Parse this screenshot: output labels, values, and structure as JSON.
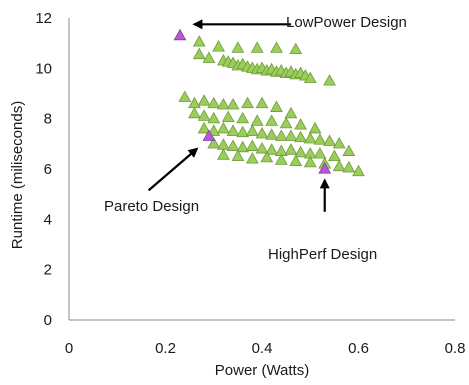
{
  "chart_data": {
    "type": "scatter",
    "xlabel": "Power (Watts)",
    "ylabel": "Runtime (miliseconds)",
    "xlim": [
      0,
      0.8
    ],
    "ylim": [
      0,
      12
    ],
    "x_ticks": [
      "0",
      "0.2",
      "0.4",
      "0.6",
      "0.8"
    ],
    "y_ticks": [
      "0",
      "2",
      "4",
      "6",
      "8",
      "10",
      "12"
    ],
    "grid": false,
    "legend": "none",
    "series": [
      {
        "color": "#9acd5a",
        "stroke": "#6f9a3a",
        "marker": "triangle",
        "points": [
          [
            0.27,
            11.05
          ],
          [
            0.31,
            10.85
          ],
          [
            0.35,
            10.8
          ],
          [
            0.39,
            10.8
          ],
          [
            0.43,
            10.8
          ],
          [
            0.47,
            10.75
          ],
          [
            0.27,
            10.55
          ],
          [
            0.29,
            10.4
          ],
          [
            0.32,
            10.3
          ],
          [
            0.33,
            10.25
          ],
          [
            0.34,
            10.2
          ],
          [
            0.35,
            10.1
          ],
          [
            0.36,
            10.15
          ],
          [
            0.37,
            10.05
          ],
          [
            0.38,
            10.0
          ],
          [
            0.39,
            9.95
          ],
          [
            0.4,
            10.0
          ],
          [
            0.41,
            9.9
          ],
          [
            0.42,
            9.95
          ],
          [
            0.43,
            9.85
          ],
          [
            0.44,
            9.9
          ],
          [
            0.45,
            9.8
          ],
          [
            0.46,
            9.85
          ],
          [
            0.47,
            9.75
          ],
          [
            0.48,
            9.8
          ],
          [
            0.49,
            9.7
          ],
          [
            0.5,
            9.6
          ],
          [
            0.54,
            9.5
          ],
          [
            0.24,
            8.85
          ],
          [
            0.26,
            8.6
          ],
          [
            0.28,
            8.7
          ],
          [
            0.3,
            8.6
          ],
          [
            0.32,
            8.55
          ],
          [
            0.34,
            8.55
          ],
          [
            0.37,
            8.6
          ],
          [
            0.4,
            8.6
          ],
          [
            0.43,
            8.45
          ],
          [
            0.46,
            8.2
          ],
          [
            0.26,
            8.2
          ],
          [
            0.28,
            8.1
          ],
          [
            0.3,
            8.0
          ],
          [
            0.33,
            8.05
          ],
          [
            0.36,
            8.0
          ],
          [
            0.39,
            7.9
          ],
          [
            0.42,
            7.9
          ],
          [
            0.45,
            7.8
          ],
          [
            0.48,
            7.75
          ],
          [
            0.51,
            7.6
          ],
          [
            0.28,
            7.6
          ],
          [
            0.3,
            7.5
          ],
          [
            0.32,
            7.6
          ],
          [
            0.34,
            7.5
          ],
          [
            0.36,
            7.45
          ],
          [
            0.38,
            7.5
          ],
          [
            0.4,
            7.4
          ],
          [
            0.42,
            7.35
          ],
          [
            0.44,
            7.3
          ],
          [
            0.46,
            7.3
          ],
          [
            0.48,
            7.25
          ],
          [
            0.5,
            7.2
          ],
          [
            0.52,
            7.15
          ],
          [
            0.54,
            7.1
          ],
          [
            0.56,
            7.0
          ],
          [
            0.3,
            7.0
          ],
          [
            0.32,
            6.95
          ],
          [
            0.34,
            6.9
          ],
          [
            0.36,
            6.85
          ],
          [
            0.38,
            6.9
          ],
          [
            0.4,
            6.8
          ],
          [
            0.42,
            6.75
          ],
          [
            0.44,
            6.7
          ],
          [
            0.46,
            6.75
          ],
          [
            0.48,
            6.65
          ],
          [
            0.5,
            6.6
          ],
          [
            0.52,
            6.6
          ],
          [
            0.55,
            6.5
          ],
          [
            0.58,
            6.7
          ],
          [
            0.32,
            6.55
          ],
          [
            0.35,
            6.5
          ],
          [
            0.38,
            6.4
          ],
          [
            0.41,
            6.45
          ],
          [
            0.44,
            6.35
          ],
          [
            0.47,
            6.3
          ],
          [
            0.5,
            6.25
          ],
          [
            0.53,
            6.2
          ],
          [
            0.56,
            6.1
          ],
          [
            0.58,
            6.05
          ],
          [
            0.6,
            5.9
          ]
        ]
      },
      {
        "color": "#b25ccf",
        "stroke": "#8a3aa8",
        "marker": "triangle",
        "points": [
          [
            0.23,
            11.3
          ],
          [
            0.29,
            7.3
          ],
          [
            0.53,
            6.0
          ]
        ]
      }
    ],
    "annotations": [
      {
        "text": "LowPower Design",
        "arrow_to": [
          0.26,
          11.75
        ],
        "arrow_from": [
          0.46,
          11.75
        ]
      },
      {
        "text": "Pareto Design",
        "arrow_to": [
          0.265,
          6.8
        ],
        "arrow_from": [
          0.165,
          5.15
        ]
      },
      {
        "text": "HighPerf Design",
        "arrow_to": [
          0.53,
          5.55
        ],
        "arrow_from": [
          0.53,
          4.3
        ]
      }
    ]
  }
}
